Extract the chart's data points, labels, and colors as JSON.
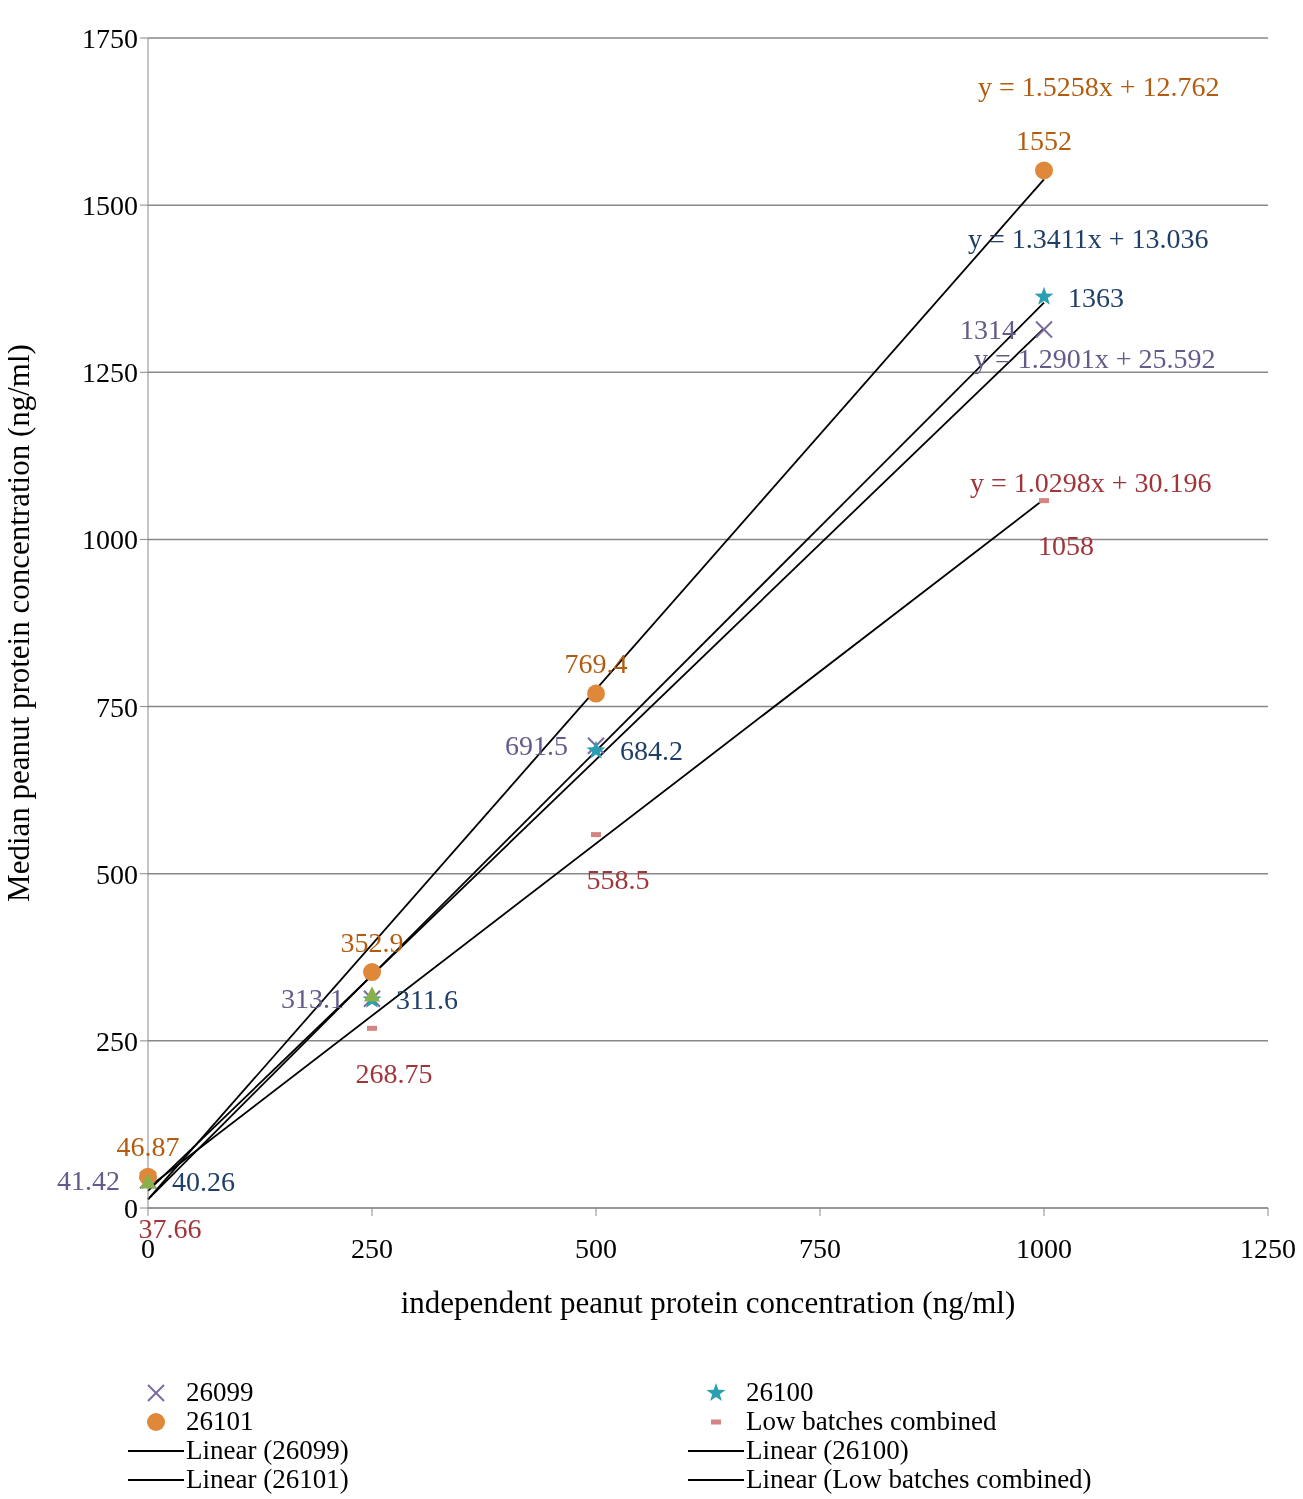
{
  "chart_data": {
    "type": "scatter",
    "xlabel": "independent peanut protein concentration (ng/ml)",
    "ylabel": "Median peanut protein concentration (ng/ml)",
    "xlim": [
      0,
      1250
    ],
    "xticks": [
      0,
      250,
      500,
      750,
      1000,
      1250
    ],
    "ylim": [
      0,
      1750
    ],
    "yticks": [
      0,
      250,
      500,
      750,
      1000,
      1250,
      1500,
      1750
    ],
    "grid": "y",
    "legend": "bottom",
    "data_labels": true,
    "series": [
      {
        "name": "26099",
        "marker": "cross",
        "color": "#7b6aa0",
        "x": [
          0,
          250,
          500,
          1000
        ],
        "values": [
          41.42,
          313.1,
          691.5,
          1314
        ]
      },
      {
        "name": "26100",
        "marker": "star",
        "color": "#2a9fb0",
        "x": [
          0,
          250,
          500,
          1000
        ],
        "values": [
          40.26,
          311.6,
          684.2,
          1363
        ]
      },
      {
        "name": "26101",
        "marker": "circle",
        "color": "#e0883a",
        "x": [
          0,
          250,
          500,
          1000
        ],
        "values": [
          46.87,
          352.9,
          769.4,
          1552
        ]
      },
      {
        "name": "Low batches combined",
        "marker": "square",
        "color": "#d48484",
        "x": [
          0,
          250,
          500,
          1000
        ],
        "values": [
          37.66,
          268.75,
          558.5,
          1058
        ]
      },
      {
        "marker": "triangle",
        "color": "#8ab04a",
        "x": [
          0,
          250
        ],
        "values": [
          38,
          318
        ],
        "value_labels": [
          null,
          null
        ]
      },
      {
        "name": "Linear (26099)",
        "type": "line",
        "color": "#000000",
        "x": [
          0,
          1000
        ],
        "values": [
          25.6,
          1315.7
        ],
        "value_labels": [
          null,
          null
        ]
      },
      {
        "name": "Linear (26100)",
        "type": "line",
        "color": "#000000",
        "x": [
          0,
          1000
        ],
        "values": [
          13,
          1354.1
        ],
        "value_labels": [
          null,
          null
        ]
      },
      {
        "name": "Linear (26101)",
        "type": "line",
        "color": "#000000",
        "x": [
          0,
          1000
        ],
        "values": [
          12.8,
          1538.6
        ],
        "value_labels": [
          null,
          null
        ]
      },
      {
        "name": "Linear (Low batches combined)",
        "type": "line",
        "color": "#000000",
        "x": [
          0,
          1000
        ],
        "values": [
          30.2,
          1060
        ],
        "value_labels": [
          null,
          null
        ]
      }
    ],
    "annotations": [
      "y = 1.2901x + 25.592",
      "y = 1.3411x + 13.036",
      "y = 1.5258x + 12.762",
      "y = 1.0298x + 30.196"
    ]
  }
}
